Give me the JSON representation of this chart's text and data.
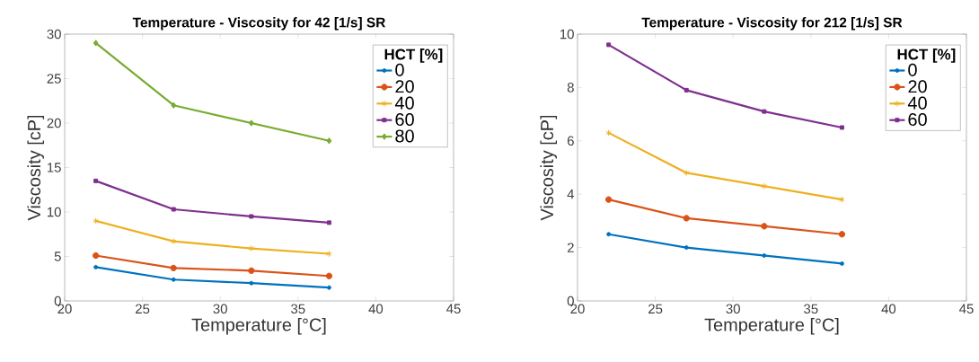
{
  "chart_data": [
    {
      "type": "line",
      "title": "Temperature - Viscosity for 42 [1/s] SR",
      "xlabel": "Temperature [°C]",
      "ylabel": "Viscosity [cP]",
      "legend_title": "HCT [%]",
      "legend": "top right",
      "grid": false,
      "x": [
        22,
        27,
        32,
        37
      ],
      "xlim": [
        20,
        45
      ],
      "xticks": [
        20,
        25,
        30,
        35,
        40,
        45
      ],
      "ylim": [
        0,
        30
      ],
      "yticks": [
        0,
        5,
        10,
        15,
        20,
        25,
        30
      ],
      "series": [
        {
          "name": "0",
          "color": "#0072bd",
          "marker": "circle",
          "values": [
            3.8,
            2.4,
            2.0,
            1.5
          ]
        },
        {
          "name": "20",
          "color": "#d95319",
          "marker": "circle",
          "values": [
            5.1,
            3.7,
            3.4,
            2.8
          ]
        },
        {
          "name": "40",
          "color": "#edb120",
          "marker": "cross",
          "values": [
            9.0,
            6.7,
            5.9,
            5.3
          ]
        },
        {
          "name": "60",
          "color": "#7e2f8e",
          "marker": "square",
          "values": [
            13.5,
            10.3,
            9.5,
            8.8
          ]
        },
        {
          "name": "80",
          "color": "#77ac30",
          "marker": "diamond",
          "values": [
            29,
            22,
            20,
            18
          ]
        }
      ]
    },
    {
      "type": "line",
      "title": "Temperature - Viscosity for 212 [1/s] SR",
      "xlabel": "Temperature [°C]",
      "ylabel": "Viscosity [cP]",
      "legend_title": "HCT [%]",
      "legend": "top right",
      "grid": false,
      "x": [
        22,
        27,
        32,
        37
      ],
      "xlim": [
        20,
        45
      ],
      "xticks": [
        20,
        25,
        30,
        35,
        40,
        45
      ],
      "ylim": [
        0,
        10
      ],
      "yticks": [
        0,
        2,
        4,
        6,
        8,
        10
      ],
      "series": [
        {
          "name": "0",
          "color": "#0072bd",
          "marker": "circle",
          "values": [
            2.5,
            2.0,
            1.7,
            1.4
          ]
        },
        {
          "name": "20",
          "color": "#d95319",
          "marker": "circle",
          "values": [
            3.8,
            3.1,
            2.8,
            2.5
          ]
        },
        {
          "name": "40",
          "color": "#edb120",
          "marker": "cross",
          "values": [
            6.3,
            4.8,
            4.3,
            3.8
          ]
        },
        {
          "name": "60",
          "color": "#7e2f8e",
          "marker": "square",
          "values": [
            9.6,
            7.9,
            7.1,
            6.5
          ]
        }
      ]
    }
  ]
}
